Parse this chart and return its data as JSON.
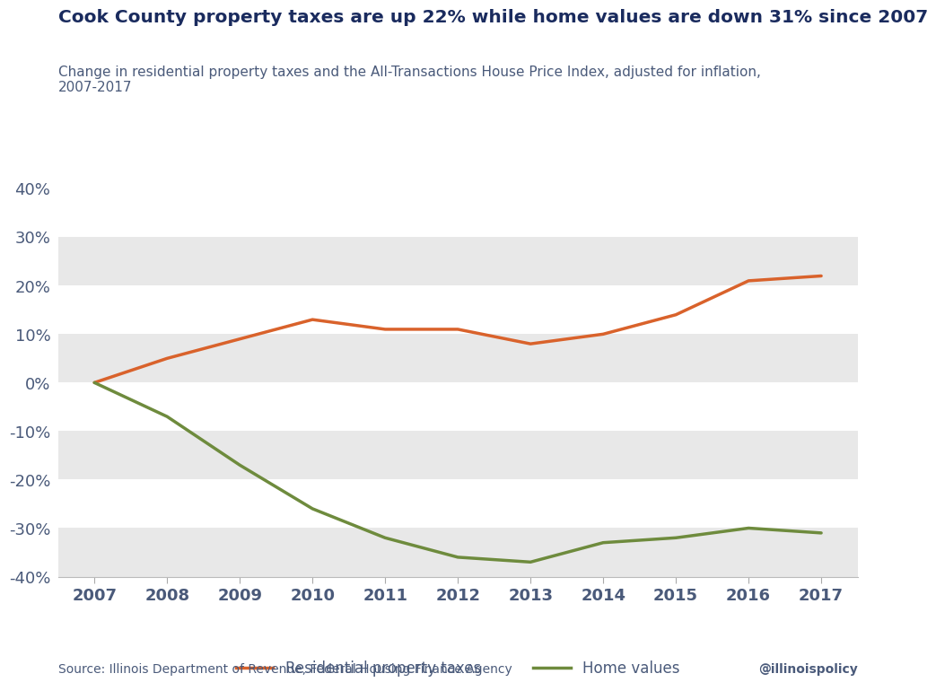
{
  "title": "Cook County property taxes are up 22% while home values are down 31% since 2007",
  "subtitle": "Change in residential property taxes and the All-Transactions House Price Index, adjusted for inflation,\n2007-2017",
  "source": "Source: Illinois Department of Revenue, Federal Housing Finance Agency",
  "watermark": "@illinoispolicy",
  "years": [
    2007,
    2008,
    2009,
    2010,
    2011,
    2012,
    2013,
    2014,
    2015,
    2016,
    2017
  ],
  "property_taxes": [
    0,
    5,
    9,
    13,
    11,
    11,
    8,
    10,
    14,
    21,
    22
  ],
  "home_values": [
    0,
    -7,
    -17,
    -26,
    -32,
    -36,
    -37,
    -33,
    -32,
    -30,
    -31
  ],
  "tax_color": "#d9622b",
  "home_color": "#6e8b3d",
  "tax_label": "Residential property taxes",
  "home_label": "Home values",
  "ylim": [
    -40,
    40
  ],
  "yticks": [
    -40,
    -30,
    -20,
    -10,
    0,
    10,
    20,
    30,
    40
  ],
  "bg_color": "#ffffff",
  "band_color": "#e8e8e8",
  "title_color": "#1a2b5e",
  "subtitle_color": "#4a5a7a",
  "axis_color": "#4a5a7a",
  "source_color": "#4a5a7a",
  "line_width": 2.5
}
